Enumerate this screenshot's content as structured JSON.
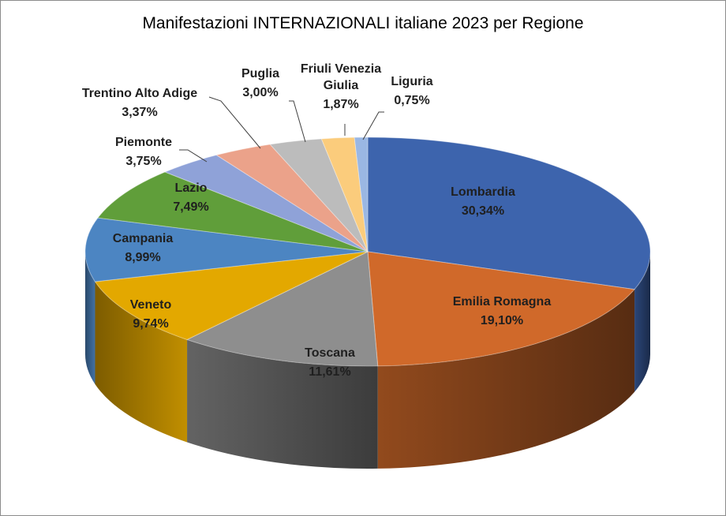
{
  "chart_data": {
    "type": "pie",
    "title": "Manifestazioni INTERNAZIONALI italiane 2023 per Regione",
    "slices": [
      {
        "name": "Lombardia",
        "value": 30.34,
        "label": "30,34%",
        "color": "#3d64ad"
      },
      {
        "name": "Emilia Romagna",
        "value": 19.1,
        "label": "19,10%",
        "color": "#d0692a"
      },
      {
        "name": "Toscana",
        "value": 11.61,
        "label": "11,61%",
        "color": "#8e8e8e"
      },
      {
        "name": "Veneto",
        "value": 9.74,
        "label": "9,74%",
        "color": "#e3a800"
      },
      {
        "name": "Campania",
        "value": 8.99,
        "label": "8,99%",
        "color": "#4c85c2"
      },
      {
        "name": "Lazio",
        "value": 7.49,
        "label": "7,49%",
        "color": "#609e3a"
      },
      {
        "name": "Piemonte",
        "value": 3.75,
        "label": "3,75%",
        "color": "#8fa2d8"
      },
      {
        "name": "Trentino Alto Adige",
        "value": 3.37,
        "label": "3,37%",
        "color": "#eba28a"
      },
      {
        "name": "Puglia",
        "value": 3.0,
        "label": "3,00%",
        "color": "#bcbcbc"
      },
      {
        "name": "Friuli Venezia Giulia",
        "value": 1.87,
        "label": "1,87%",
        "color": "#fbcc7c"
      },
      {
        "name": "Liguria",
        "value": 0.75,
        "label": "0,75%",
        "color": "#9ab7e3"
      }
    ]
  }
}
